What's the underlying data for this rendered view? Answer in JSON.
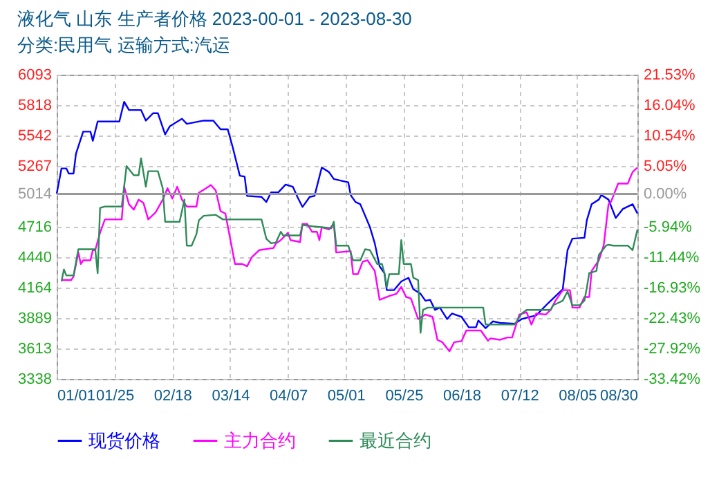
{
  "chart_data": {
    "type": "line",
    "title": "液化气 山东 生产者价格 2023-00-01 - 2023-08-30",
    "subtitle": "分类:民用气 运输方式:汽运",
    "xlim": [
      "2023-01-01",
      "2023-08-30"
    ],
    "xticks": [
      {
        "value": "2023-01-01",
        "label": "01/01"
      },
      {
        "value": "2023-01-25",
        "label": "01/25"
      },
      {
        "value": "2023-02-18",
        "label": "02/18"
      },
      {
        "value": "2023-03-14",
        "label": "03/14"
      },
      {
        "value": "2023-04-07",
        "label": "04/07"
      },
      {
        "value": "2023-05-01",
        "label": "05/01"
      },
      {
        "value": "2023-05-25",
        "label": "05/25"
      },
      {
        "value": "2023-06-18",
        "label": "06/18"
      },
      {
        "value": "2023-07-12",
        "label": "07/12"
      },
      {
        "value": "2023-08-05",
        "label": "08/05"
      },
      {
        "value": "2023-08-30",
        "label": "08/30"
      }
    ],
    "ylim": [
      3338,
      6093
    ],
    "yticks": [
      3338,
      3613,
      3889,
      4164,
      4440,
      4716,
      5014,
      5267,
      5542,
      5818,
      6093
    ],
    "y2lim": [
      -33.42,
      21.53
    ],
    "y2ticks": [
      {
        "value": -33.42,
        "label": "-33.42%"
      },
      {
        "value": -27.92,
        "label": "-27.92%"
      },
      {
        "value": -22.43,
        "label": "-22.43%"
      },
      {
        "value": -16.93,
        "label": "-16.93%"
      },
      {
        "value": -11.44,
        "label": "-11.44%"
      },
      {
        "value": -5.94,
        "label": "-5.94%"
      },
      {
        "value": 0,
        "label": "0.00%"
      },
      {
        "value": 5.05,
        "label": "5.05%"
      },
      {
        "value": 10.54,
        "label": "10.54%"
      },
      {
        "value": 16.04,
        "label": "16.04%"
      },
      {
        "value": 21.53,
        "label": "21.53%"
      }
    ],
    "ref_lines": [
      {
        "axis": "y2",
        "value": 0,
        "color": "#999999"
      }
    ],
    "grid": true,
    "legend": "bottom",
    "series": [
      {
        "name": "现货价格",
        "color": "#0000ff",
        "x": [
          "2023-01-01",
          "2023-01-03",
          "2023-01-05",
          "2023-01-06",
          "2023-01-08",
          "2023-01-09",
          "2023-01-12",
          "2023-01-15",
          "2023-01-16",
          "2023-01-18",
          "2023-01-27",
          "2023-01-29",
          "2023-01-31",
          "2023-02-05",
          "2023-02-07",
          "2023-02-10",
          "2023-02-12",
          "2023-02-15",
          "2023-02-17",
          "2023-02-22",
          "2023-02-24",
          "2023-03-03",
          "2023-03-07",
          "2023-03-10",
          "2023-03-13",
          "2023-03-15",
          "2023-03-18",
          "2023-03-20",
          "2023-03-21",
          "2023-03-27",
          "2023-03-29",
          "2023-03-31",
          "2023-04-03",
          "2023-04-06",
          "2023-04-09",
          "2023-04-11",
          "2023-04-13",
          "2023-04-16",
          "2023-04-18",
          "2023-04-21",
          "2023-04-24",
          "2023-04-26",
          "2023-04-30",
          "2023-05-02",
          "2023-05-03",
          "2023-05-05",
          "2023-05-07",
          "2023-05-11",
          "2023-05-13",
          "2023-05-15",
          "2023-05-17",
          "2023-05-18",
          "2023-05-21",
          "2023-05-24",
          "2023-05-27",
          "2023-05-29",
          "2023-06-01",
          "2023-06-03",
          "2023-06-05",
          "2023-06-07",
          "2023-06-09",
          "2023-06-12",
          "2023-06-14",
          "2023-06-18",
          "2023-06-21",
          "2023-06-24",
          "2023-06-25",
          "2023-06-28",
          "2023-07-01",
          "2023-07-04",
          "2023-07-10",
          "2023-07-13",
          "2023-07-19",
          "2023-07-24",
          "2023-07-30",
          "2023-08-01",
          "2023-08-03",
          "2023-08-08",
          "2023-08-09",
          "2023-08-11",
          "2023-08-14",
          "2023-08-15",
          "2023-08-18",
          "2023-08-21",
          "2023-08-24",
          "2023-08-28",
          "2023-08-30"
        ],
        "values": [
          5014,
          5244,
          5244,
          5198,
          5198,
          5377,
          5577,
          5577,
          5494,
          5669,
          5669,
          5848,
          5773,
          5773,
          5677,
          5744,
          5744,
          5552,
          5627,
          5694,
          5648,
          5677,
          5677,
          5598,
          5598,
          5440,
          5178,
          5170,
          4995,
          4986,
          4940,
          5028,
          5028,
          5098,
          5078,
          4982,
          4895,
          4986,
          4995,
          5252,
          5211,
          5148,
          5128,
          5119,
          5003,
          4940,
          4920,
          4712,
          4566,
          4358,
          4296,
          4142,
          4142,
          4221,
          4254,
          4150,
          4109,
          4046,
          4054,
          3963,
          3984,
          3880,
          3930,
          3900,
          3805,
          3805,
          3867,
          3797,
          3859,
          3846,
          3838,
          3880,
          3913,
          4025,
          4150,
          4504,
          4608,
          4616,
          4774,
          4920,
          4962,
          5003,
          4962,
          4795,
          4878,
          4920,
          4837
        ]
      },
      {
        "name": "主力合约",
        "color": "#ff00ff",
        "x": [
          "2023-01-03",
          "2023-01-07",
          "2023-01-08",
          "2023-01-10",
          "2023-01-11",
          "2023-01-12",
          "2023-01-15",
          "2023-01-16",
          "2023-01-17",
          "2023-01-19",
          "2023-01-21",
          "2023-01-28",
          "2023-01-29",
          "2023-01-31",
          "2023-02-02",
          "2023-02-04",
          "2023-02-06",
          "2023-02-08",
          "2023-02-11",
          "2023-02-14",
          "2023-02-16",
          "2023-02-18",
          "2023-02-20",
          "2023-02-22",
          "2023-02-24",
          "2023-02-28",
          "2023-03-01",
          "2023-03-04",
          "2023-03-06",
          "2023-03-08",
          "2023-03-10",
          "2023-03-12",
          "2023-03-14",
          "2023-03-16",
          "2023-03-19",
          "2023-03-21",
          "2023-03-23",
          "2023-03-26",
          "2023-04-01",
          "2023-04-02",
          "2023-04-04",
          "2023-04-07",
          "2023-04-08",
          "2023-04-12",
          "2023-04-13",
          "2023-04-15",
          "2023-04-17",
          "2023-04-19",
          "2023-04-20",
          "2023-04-21",
          "2023-04-24",
          "2023-04-26",
          "2023-04-27",
          "2023-05-03",
          "2023-05-04",
          "2023-05-06",
          "2023-05-08",
          "2023-05-10",
          "2023-05-13",
          "2023-05-15",
          "2023-05-19",
          "2023-05-22",
          "2023-05-24",
          "2023-05-26",
          "2023-05-28",
          "2023-05-31",
          "2023-06-03",
          "2023-06-06",
          "2023-06-08",
          "2023-06-10",
          "2023-06-13",
          "2023-06-15",
          "2023-06-18",
          "2023-06-20",
          "2023-06-26",
          "2023-06-29",
          "2023-06-30",
          "2023-07-04",
          "2023-07-07",
          "2023-07-09",
          "2023-07-12",
          "2023-07-15",
          "2023-07-17",
          "2023-07-19",
          "2023-07-23",
          "2023-07-25",
          "2023-07-27",
          "2023-07-30",
          "2023-08-02",
          "2023-08-03",
          "2023-08-06",
          "2023-08-08",
          "2023-08-10",
          "2023-08-11",
          "2023-08-14",
          "2023-08-16",
          "2023-08-18",
          "2023-08-19",
          "2023-08-22",
          "2023-08-26",
          "2023-08-28",
          "2023-08-30"
        ],
        "values": [
          4233,
          4233,
          4266,
          4483,
          4379,
          4412,
          4412,
          4504,
          4504,
          4662,
          4782,
          4782,
          5078,
          4920,
          4870,
          4961,
          4932,
          4782,
          4845,
          4961,
          5065,
          4970,
          5078,
          4961,
          4899,
          4899,
          5024,
          5065,
          5094,
          5044,
          4857,
          4836,
          4607,
          4379,
          4379,
          4358,
          4441,
          4504,
          4524,
          4566,
          4595,
          4662,
          4595,
          4578,
          4741,
          4741,
          4670,
          4670,
          4595,
          4712,
          4691,
          4745,
          4483,
          4495,
          4287,
          4287,
          4400,
          4412,
          4316,
          4054,
          4088,
          4109,
          4171,
          4080,
          4067,
          3880,
          3921,
          3900,
          3692,
          3671,
          3588,
          3671,
          3680,
          3776,
          3776,
          3684,
          3705,
          3692,
          3713,
          3713,
          3921,
          3942,
          3830,
          3930,
          3921,
          3963,
          4046,
          4142,
          4142,
          3984,
          3984,
          4080,
          4080,
          4316,
          4412,
          4545,
          4920,
          4940,
          5107,
          5107,
          5211,
          5252
        ]
      },
      {
        "name": "最近合约",
        "color": "#2e8b57",
        "x": [
          "2023-01-03",
          "2023-01-04",
          "2023-01-05",
          "2023-01-08",
          "2023-01-10",
          "2023-01-17",
          "2023-01-18",
          "2023-01-19",
          "2023-01-21",
          "2023-01-28",
          "2023-01-30",
          "2023-02-02",
          "2023-02-04",
          "2023-02-05",
          "2023-02-07",
          "2023-02-08",
          "2023-02-12",
          "2023-02-14",
          "2023-02-15",
          "2023-02-21",
          "2023-02-23",
          "2023-02-24",
          "2023-02-26",
          "2023-02-28",
          "2023-03-01",
          "2023-03-03",
          "2023-03-08",
          "2023-03-11",
          "2023-03-27",
          "2023-03-29",
          "2023-03-31",
          "2023-04-02",
          "2023-04-04",
          "2023-04-05",
          "2023-04-12",
          "2023-04-13",
          "2023-04-17",
          "2023-04-25",
          "2023-04-26",
          "2023-04-27",
          "2023-05-02",
          "2023-05-04",
          "2023-05-07",
          "2023-05-09",
          "2023-05-11",
          "2023-05-14",
          "2023-05-16",
          "2023-05-17",
          "2023-05-18",
          "2023-05-19",
          "2023-05-23",
          "2023-05-24",
          "2023-05-25",
          "2023-05-28",
          "2023-05-29",
          "2023-05-31",
          "2023-06-01",
          "2023-06-02",
          "2023-06-04",
          "2023-06-27",
          "2023-06-28",
          "2023-07-10",
          "2023-07-13",
          "2023-07-15",
          "2023-07-25",
          "2023-07-26",
          "2023-07-28",
          "2023-07-30",
          "2023-08-01",
          "2023-08-03",
          "2023-08-06",
          "2023-08-08",
          "2023-08-09",
          "2023-08-10",
          "2023-08-13",
          "2023-08-14",
          "2023-08-17",
          "2023-08-18",
          "2023-08-20",
          "2023-08-26",
          "2023-08-28",
          "2023-08-30"
        ],
        "values": [
          4221,
          4329,
          4275,
          4275,
          4512,
          4512,
          4295,
          4886,
          4899,
          4899,
          5265,
          5182,
          5182,
          5336,
          5078,
          5219,
          5219,
          5065,
          4761,
          4761,
          4961,
          4545,
          4545,
          4649,
          4774,
          4815,
          4824,
          4782,
          4782,
          4607,
          4566,
          4574,
          4670,
          4637,
          4637,
          4732,
          4720,
          4703,
          4761,
          4545,
          4545,
          4412,
          4412,
          4512,
          4504,
          4379,
          4379,
          4295,
          4171,
          4287,
          4287,
          4595,
          4379,
          4379,
          4254,
          4233,
          3755,
          3963,
          3984,
          3984,
          3830,
          3830,
          3930,
          3963,
          3963,
          4005,
          4025,
          4046,
          4130,
          4005,
          4005,
          4046,
          4163,
          4296,
          4316,
          4462,
          4545,
          4553,
          4545,
          4545,
          4504,
          4691
        ]
      }
    ]
  }
}
